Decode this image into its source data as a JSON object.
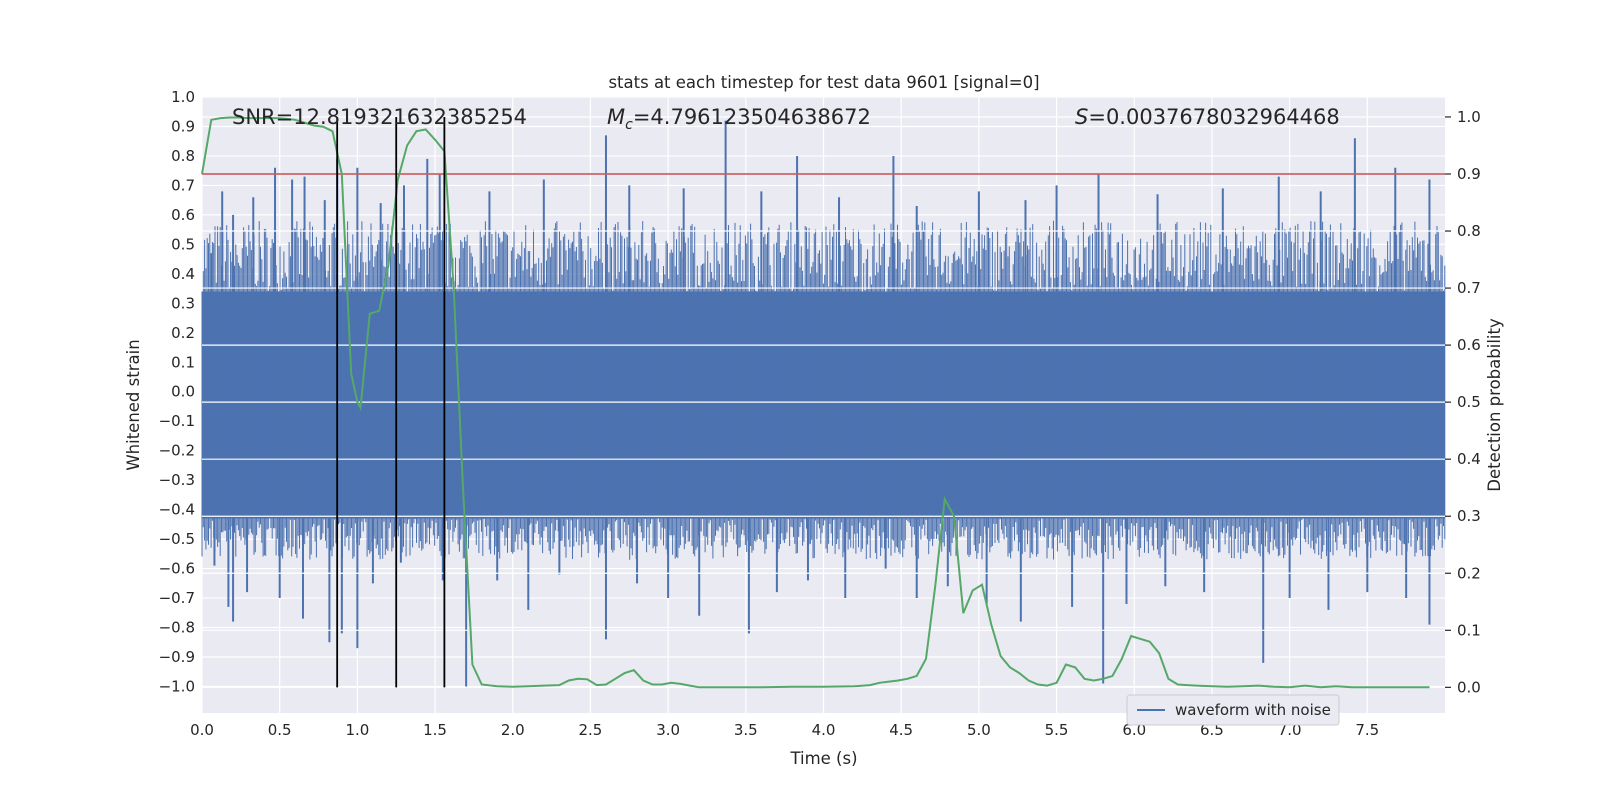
{
  "chart_data": {
    "type": "line",
    "title": "stats at each timestep for test data 9601 [signal=0]",
    "xlabel": "Time (s)",
    "ylabel": "Whitened strain",
    "y2label": "Detection probability",
    "xlim": [
      0.0,
      8.0
    ],
    "ylim": [
      -1.09,
      1.0
    ],
    "y2lim": [
      -0.045,
      1.035
    ],
    "xticks": [
      0.0,
      0.5,
      1.0,
      1.5,
      2.0,
      2.5,
      3.0,
      3.5,
      4.0,
      4.5,
      5.0,
      5.5,
      6.0,
      6.5,
      7.0,
      7.5
    ],
    "yticks": [
      -1.0,
      -0.9,
      -0.8,
      -0.7,
      -0.6,
      -0.5,
      -0.4,
      -0.3,
      -0.2,
      -0.1,
      0.0,
      0.1,
      0.2,
      0.3,
      0.4,
      0.5,
      0.6,
      0.7,
      0.8,
      0.9,
      1.0
    ],
    "y2ticks": [
      0.0,
      0.1,
      0.2,
      0.3,
      0.4,
      0.5,
      0.6,
      0.7,
      0.8,
      0.9,
      1.0
    ],
    "grid": true,
    "legend": {
      "position": "lower-right",
      "entries": [
        "waveform with noise"
      ]
    },
    "annotations": {
      "snr": "SNR=12.819321632385254",
      "mc_symbol": "M",
      "mc_sub": "c",
      "mc_value": "=4.796123504638672",
      "s_symbol": "S",
      "s_value": "=0.003767803296446​8"
    },
    "threshold": {
      "axis": "right",
      "value": 0.9,
      "color": "#c44e52"
    },
    "vertical_lines": [
      0.87,
      1.25,
      1.56
    ],
    "series": [
      {
        "name": "waveform with noise",
        "axis": "left",
        "color": "#4c72b0",
        "kind": "noise",
        "core_range": [
          -0.43,
          0.34
        ],
        "spikes": [
          [
            0.06,
            0.47
          ],
          [
            0.13,
            0.68
          ],
          [
            0.2,
            0.6
          ],
          [
            0.33,
            0.66
          ],
          [
            0.47,
            0.76
          ],
          [
            0.58,
            0.72
          ],
          [
            0.66,
            0.73
          ],
          [
            0.79,
            0.65
          ],
          [
            0.87,
            0.79
          ],
          [
            1.0,
            0.76
          ],
          [
            1.15,
            0.64
          ],
          [
            1.3,
            0.7
          ],
          [
            1.45,
            0.79
          ],
          [
            1.53,
            0.74
          ],
          [
            1.85,
            0.68
          ],
          [
            2.2,
            0.72
          ],
          [
            2.6,
            0.87
          ],
          [
            2.75,
            0.7
          ],
          [
            3.1,
            0.69
          ],
          [
            3.37,
            0.92
          ],
          [
            3.6,
            0.68
          ],
          [
            3.83,
            0.8
          ],
          [
            4.1,
            0.66
          ],
          [
            4.45,
            0.8
          ],
          [
            4.6,
            0.63
          ],
          [
            5.0,
            0.68
          ],
          [
            5.3,
            0.65
          ],
          [
            5.5,
            0.7
          ],
          [
            5.77,
            0.74
          ],
          [
            6.15,
            0.67
          ],
          [
            6.57,
            0.69
          ],
          [
            6.93,
            0.73
          ],
          [
            7.2,
            0.68
          ],
          [
            7.42,
            0.86
          ],
          [
            7.68,
            0.76
          ],
          [
            7.9,
            0.72
          ],
          [
            0.08,
            -0.59
          ],
          [
            0.17,
            -0.73
          ],
          [
            0.2,
            -0.78
          ],
          [
            0.29,
            -0.68
          ],
          [
            0.5,
            -0.7
          ],
          [
            0.65,
            -0.77
          ],
          [
            0.82,
            -0.85
          ],
          [
            0.9,
            -0.82
          ],
          [
            1.0,
            -0.87
          ],
          [
            1.1,
            -0.65
          ],
          [
            1.28,
            -0.58
          ],
          [
            1.55,
            -0.64
          ],
          [
            1.7,
            -1.0
          ],
          [
            1.9,
            -0.64
          ],
          [
            2.1,
            -0.74
          ],
          [
            2.3,
            -0.62
          ],
          [
            2.6,
            -0.84
          ],
          [
            2.8,
            -0.65
          ],
          [
            3.0,
            -0.7
          ],
          [
            3.2,
            -0.76
          ],
          [
            3.52,
            -0.82
          ],
          [
            3.7,
            -0.68
          ],
          [
            3.9,
            -0.64
          ],
          [
            4.14,
            -0.7
          ],
          [
            4.4,
            -0.6
          ],
          [
            4.6,
            -0.7
          ],
          [
            4.8,
            -0.66
          ],
          [
            5.05,
            -0.72
          ],
          [
            5.27,
            -0.78
          ],
          [
            5.6,
            -0.73
          ],
          [
            5.8,
            -0.99
          ],
          [
            5.95,
            -0.72
          ],
          [
            6.2,
            -0.66
          ],
          [
            6.45,
            -0.68
          ],
          [
            6.83,
            -0.92
          ],
          [
            7.0,
            -0.7
          ],
          [
            7.25,
            -0.74
          ],
          [
            7.5,
            -0.68
          ],
          [
            7.75,
            -0.7
          ],
          [
            7.9,
            -0.79
          ]
        ]
      },
      {
        "name": "detection probability",
        "axis": "right",
        "color": "#55a868",
        "x": [
          0.0,
          0.06,
          0.12,
          0.18,
          0.24,
          0.3,
          0.36,
          0.42,
          0.48,
          0.54,
          0.6,
          0.66,
          0.72,
          0.78,
          0.84,
          0.9,
          0.96,
          1.0,
          1.02,
          1.08,
          1.14,
          1.2,
          1.26,
          1.32,
          1.38,
          1.44,
          1.5,
          1.56,
          1.62,
          1.68,
          1.74,
          1.8,
          1.9,
          2.0,
          2.1,
          2.2,
          2.3,
          2.36,
          2.42,
          2.48,
          2.54,
          2.6,
          2.66,
          2.72,
          2.78,
          2.84,
          2.9,
          2.96,
          3.02,
          3.08,
          3.14,
          3.2,
          3.4,
          3.6,
          3.8,
          4.0,
          4.2,
          4.3,
          4.36,
          4.42,
          4.48,
          4.54,
          4.6,
          4.66,
          4.72,
          4.78,
          4.84,
          4.9,
          4.96,
          5.02,
          5.08,
          5.14,
          5.2,
          5.26,
          5.32,
          5.38,
          5.44,
          5.5,
          5.56,
          5.62,
          5.68,
          5.74,
          5.8,
          5.86,
          5.92,
          5.98,
          6.04,
          6.1,
          6.16,
          6.22,
          6.28,
          6.34,
          6.4,
          6.5,
          6.6,
          6.7,
          6.8,
          6.9,
          7.0,
          7.1,
          7.2,
          7.3,
          7.4,
          7.5,
          7.6,
          7.7,
          7.8,
          7.9
        ],
        "values": [
          0.9,
          0.995,
          0.998,
          0.999,
          0.999,
          0.998,
          0.998,
          0.998,
          0.998,
          0.997,
          0.995,
          0.99,
          0.985,
          0.983,
          0.975,
          0.9,
          0.55,
          0.5,
          0.49,
          0.655,
          0.66,
          0.74,
          0.89,
          0.95,
          0.975,
          0.978,
          0.96,
          0.94,
          0.7,
          0.35,
          0.04,
          0.005,
          0.002,
          0.001,
          0.002,
          0.003,
          0.004,
          0.012,
          0.015,
          0.014,
          0.004,
          0.005,
          0.015,
          0.025,
          0.03,
          0.012,
          0.005,
          0.005,
          0.008,
          0.006,
          0.003,
          0.0,
          0.0,
          0.0,
          0.001,
          0.001,
          0.002,
          0.004,
          0.008,
          0.01,
          0.012,
          0.015,
          0.02,
          0.05,
          0.18,
          0.33,
          0.3,
          0.13,
          0.17,
          0.18,
          0.11,
          0.055,
          0.035,
          0.025,
          0.012,
          0.005,
          0.003,
          0.008,
          0.04,
          0.035,
          0.015,
          0.012,
          0.015,
          0.02,
          0.05,
          0.09,
          0.085,
          0.08,
          0.06,
          0.015,
          0.005,
          0.004,
          0.003,
          0.002,
          0.001,
          0.002,
          0.003,
          0.001,
          0.0,
          0.003,
          0.0,
          0.002,
          0.0,
          0.0,
          0.0,
          0.0,
          0.0,
          0.0
        ]
      }
    ]
  }
}
